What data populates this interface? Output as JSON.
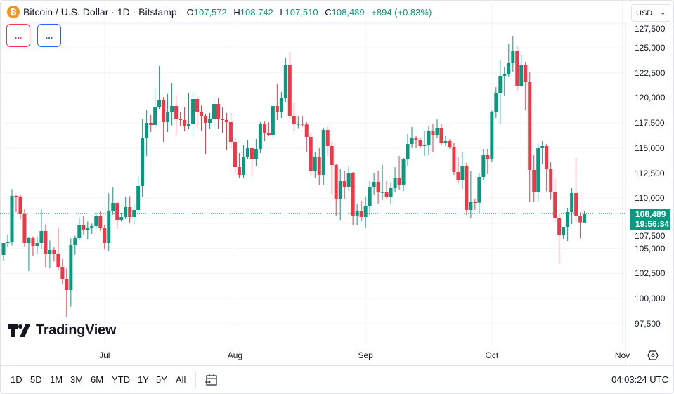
{
  "header": {
    "symbol_title": "Bitcoin / U.S. Dollar · 1D · Bitstamp",
    "coin_glyph": "₿",
    "open_label": "O",
    "open": "107,572",
    "high_label": "H",
    "high": "108,742",
    "low_label": "L",
    "low": "107,510",
    "close_label": "C",
    "close": "108,489",
    "change": "+894 (+0.83%)"
  },
  "indicator_buttons": [
    {
      "label": "...",
      "color": "#f23645"
    },
    {
      "label": "...",
      "color": "#2962ff"
    }
  ],
  "currency": {
    "selected": "USD"
  },
  "price_label": {
    "price": "108,489",
    "countdown": "19:56:34"
  },
  "logo": {
    "text": "TradingView"
  },
  "range_buttons": [
    "1D",
    "5D",
    "1M",
    "3M",
    "6M",
    "YTD",
    "1Y",
    "5Y",
    "All"
  ],
  "clock": "04:03:24 UTC",
  "colors": {
    "up": "#089981",
    "down": "#f23645",
    "grid": "#f0f3fa"
  },
  "chart_data": {
    "type": "candlestick",
    "title": "Bitcoin / U.S. Dollar · 1D · Bitstamp",
    "yaxis": {
      "ticks": [
        97500,
        100000,
        102500,
        105000,
        107500,
        110000,
        112500,
        115000,
        117500,
        120000,
        122500,
        125000,
        127500
      ],
      "tick_labels": [
        "97,500",
        "100,000",
        "102,500",
        "105,000",
        "107,500",
        "110,000",
        "112,500",
        "115,000",
        "117,500",
        "120,000",
        "122,500",
        "125,000",
        "127,500"
      ],
      "range": [
        95500,
        128000
      ]
    },
    "xaxis": {
      "labels": [
        {
          "text": "Jul",
          "bar_index": 24
        },
        {
          "text": "Aug",
          "bar_index": 55
        },
        {
          "text": "Sep",
          "bar_index": 86
        },
        {
          "text": "Oct",
          "bar_index": 116
        },
        {
          "text": "Nov",
          "bar_index": 147
        }
      ]
    },
    "last_price": 108489,
    "candles_ohlc": [
      [
        104350,
        105000,
        103800,
        105540
      ],
      [
        105540,
        106400,
        105100,
        105680
      ],
      [
        105680,
        110900,
        105300,
        110230
      ],
      [
        110230,
        110300,
        108600,
        110180
      ],
      [
        110180,
        110330,
        107900,
        108480
      ],
      [
        108480,
        108900,
        105200,
        105540
      ],
      [
        105540,
        106100,
        102740,
        106030
      ],
      [
        106030,
        106200,
        104250,
        105260
      ],
      [
        105260,
        106100,
        104500,
        105540
      ],
      [
        105540,
        108900,
        104900,
        106730
      ],
      [
        106730,
        107400,
        103140,
        104420
      ],
      [
        104420,
        105800,
        103000,
        104840
      ],
      [
        104840,
        105100,
        103700,
        104490
      ],
      [
        104490,
        107070,
        102850,
        103160
      ],
      [
        103160,
        103950,
        101420,
        101970
      ],
      [
        101970,
        103000,
        98120,
        100850
      ],
      [
        100850,
        106000,
        99200,
        105330
      ],
      [
        105330,
        106270,
        104360,
        106030
      ],
      [
        106030,
        108030,
        105850,
        107290
      ],
      [
        107290,
        108200,
        106390,
        106870
      ],
      [
        106870,
        107670,
        105900,
        107010
      ],
      [
        107010,
        107480,
        106450,
        107220
      ],
      [
        107220,
        108580,
        107000,
        108270
      ],
      [
        108270,
        108690,
        106760,
        107010
      ],
      [
        107010,
        107300,
        104910,
        105540
      ],
      [
        105540,
        110500,
        104700,
        108760
      ],
      [
        108760,
        111140,
        108350,
        109530
      ],
      [
        109530,
        109700,
        106960,
        107850
      ],
      [
        107850,
        108570,
        107680,
        108130
      ],
      [
        108130,
        110170,
        107920,
        109110
      ],
      [
        109110,
        110200,
        107500,
        108130
      ],
      [
        108130,
        109500,
        107400,
        108830
      ],
      [
        108830,
        112150,
        108500,
        111210
      ],
      [
        111210,
        117900,
        110100,
        115970
      ],
      [
        115970,
        118800,
        114200,
        117510
      ],
      [
        117510,
        118300,
        116600,
        117300
      ],
      [
        117300,
        121000,
        117000,
        119050
      ],
      [
        119050,
        123180,
        118900,
        119820
      ],
      [
        119820,
        120100,
        115620,
        117580
      ],
      [
        117580,
        120400,
        116600,
        118630
      ],
      [
        118630,
        121500,
        117250,
        119190
      ],
      [
        119190,
        120300,
        116300,
        117860
      ],
      [
        117860,
        118600,
        117200,
        117790
      ],
      [
        117790,
        119100,
        116690,
        117160
      ],
      [
        117160,
        120500,
        116900,
        117370
      ],
      [
        117370,
        120500,
        116090,
        119890
      ],
      [
        119890,
        120140,
        116960,
        118630
      ],
      [
        118630,
        119250,
        116710,
        118210
      ],
      [
        118210,
        118400,
        114430,
        117510
      ],
      [
        117510,
        118500,
        116920,
        117860
      ],
      [
        117860,
        120000,
        117300,
        119400
      ],
      [
        119400,
        120000,
        116920,
        117860
      ],
      [
        117860,
        119050,
        116500,
        117790
      ],
      [
        117790,
        118500,
        114800,
        117650
      ],
      [
        117650,
        118500,
        114990,
        115620
      ],
      [
        115620,
        116110,
        112470,
        113100
      ],
      [
        113100,
        114500,
        112050,
        112330
      ],
      [
        112330,
        115300,
        112050,
        114150
      ],
      [
        114150,
        115780,
        113870,
        114990
      ],
      [
        114990,
        115100,
        112190,
        113940
      ],
      [
        113940,
        115900,
        113170,
        114920
      ],
      [
        114920,
        117600,
        114500,
        117440
      ],
      [
        117440,
        117700,
        115680,
        116530
      ],
      [
        116530,
        117580,
        116200,
        116320
      ],
      [
        116320,
        119190,
        116100,
        119190
      ],
      [
        119190,
        121420,
        117790,
        118560
      ],
      [
        118560,
        120600,
        118000,
        120030
      ],
      [
        120030,
        124020,
        119600,
        123250
      ],
      [
        123250,
        124440,
        117850,
        118210
      ],
      [
        118210,
        119530,
        116640,
        117370
      ],
      [
        117370,
        118200,
        116980,
        117400
      ],
      [
        117400,
        118200,
        117120,
        117350
      ],
      [
        117350,
        117600,
        114640,
        116110
      ],
      [
        116110,
        116530,
        112310,
        112680
      ],
      [
        112680,
        114640,
        111990,
        114150
      ],
      [
        114150,
        114990,
        111280,
        112330
      ],
      [
        112330,
        117030,
        111280,
        116810
      ],
      [
        116810,
        117100,
        114220,
        115200
      ],
      [
        115200,
        115620,
        110400,
        113310
      ],
      [
        113310,
        113450,
        108270,
        109950
      ],
      [
        109950,
        112890,
        107850,
        111700
      ],
      [
        111700,
        112730,
        109950,
        111140
      ],
      [
        111140,
        113240,
        110700,
        112470
      ],
      [
        112470,
        112610,
        107360,
        108200
      ],
      [
        108200,
        109420,
        107290,
        108760
      ],
      [
        108760,
        109750,
        107780,
        108130
      ],
      [
        108130,
        110170,
        107080,
        109180
      ],
      [
        109180,
        111700,
        108340,
        111140
      ],
      [
        111140,
        112470,
        110330,
        111630
      ],
      [
        111630,
        112750,
        109470,
        110580
      ],
      [
        110580,
        113310,
        109820,
        110600
      ],
      [
        110600,
        111700,
        109900,
        110090
      ],
      [
        110090,
        111490,
        109400,
        111070
      ],
      [
        111070,
        113100,
        110650,
        111980
      ],
      [
        111980,
        114220,
        110800,
        111350
      ],
      [
        111350,
        114010,
        110700,
        113870
      ],
      [
        113870,
        116390,
        113250,
        115410
      ],
      [
        115410,
        117100,
        115000,
        116040
      ],
      [
        116040,
        116250,
        114990,
        115830
      ],
      [
        115830,
        116040,
        114990,
        115200
      ],
      [
        115200,
        116740,
        114220,
        115270
      ],
      [
        115270,
        117160,
        114360,
        116740
      ],
      [
        116740,
        117400,
        114570,
        116320
      ],
      [
        116320,
        117850,
        116000,
        117020
      ],
      [
        117020,
        117440,
        115270,
        115550
      ],
      [
        115550,
        116250,
        115200,
        115690
      ],
      [
        115690,
        115900,
        114920,
        115130
      ],
      [
        115130,
        115480,
        112330,
        112610
      ],
      [
        112610,
        114080,
        111490,
        111840
      ],
      [
        111840,
        114570,
        110930,
        113240
      ],
      [
        113240,
        113530,
        108340,
        108830
      ],
      [
        108830,
        112680,
        108060,
        109600
      ],
      [
        109600,
        109900,
        108830,
        109550
      ],
      [
        109550,
        112540,
        108480,
        112120
      ],
      [
        112120,
        114920,
        111770,
        114290
      ],
      [
        114290,
        114920,
        112400,
        113870
      ],
      [
        113870,
        118760,
        113660,
        118560
      ],
      [
        118560,
        121090,
        118020,
        120520
      ],
      [
        120520,
        123810,
        117440,
        122200
      ],
      [
        122200,
        123110,
        120240,
        122340
      ],
      [
        122340,
        125390,
        122100,
        123460
      ],
      [
        123460,
        126190,
        122620,
        124650
      ],
      [
        124650,
        125180,
        120730,
        121220
      ],
      [
        121220,
        124230,
        121070,
        123250
      ],
      [
        123250,
        123600,
        118760,
        121570
      ],
      [
        121570,
        122550,
        109600,
        112820
      ],
      [
        112820,
        114290,
        109600,
        110580
      ],
      [
        110580,
        115400,
        109600,
        114990
      ],
      [
        114990,
        115690,
        113450,
        115200
      ],
      [
        115200,
        115410,
        110680,
        112890
      ],
      [
        112890,
        113590,
        109850,
        110650
      ],
      [
        110650,
        112050,
        107640,
        108060
      ],
      [
        108060,
        108550,
        103440,
        106310
      ],
      [
        106310,
        106950,
        105890,
        107150
      ],
      [
        107150,
        109050,
        105750,
        108620
      ],
      [
        108620,
        111000,
        107430,
        110510
      ],
      [
        110510,
        114010,
        107640,
        108200
      ],
      [
        108200,
        108600,
        106000,
        107595
      ],
      [
        107572,
        108742,
        107510,
        108489
      ]
    ]
  }
}
